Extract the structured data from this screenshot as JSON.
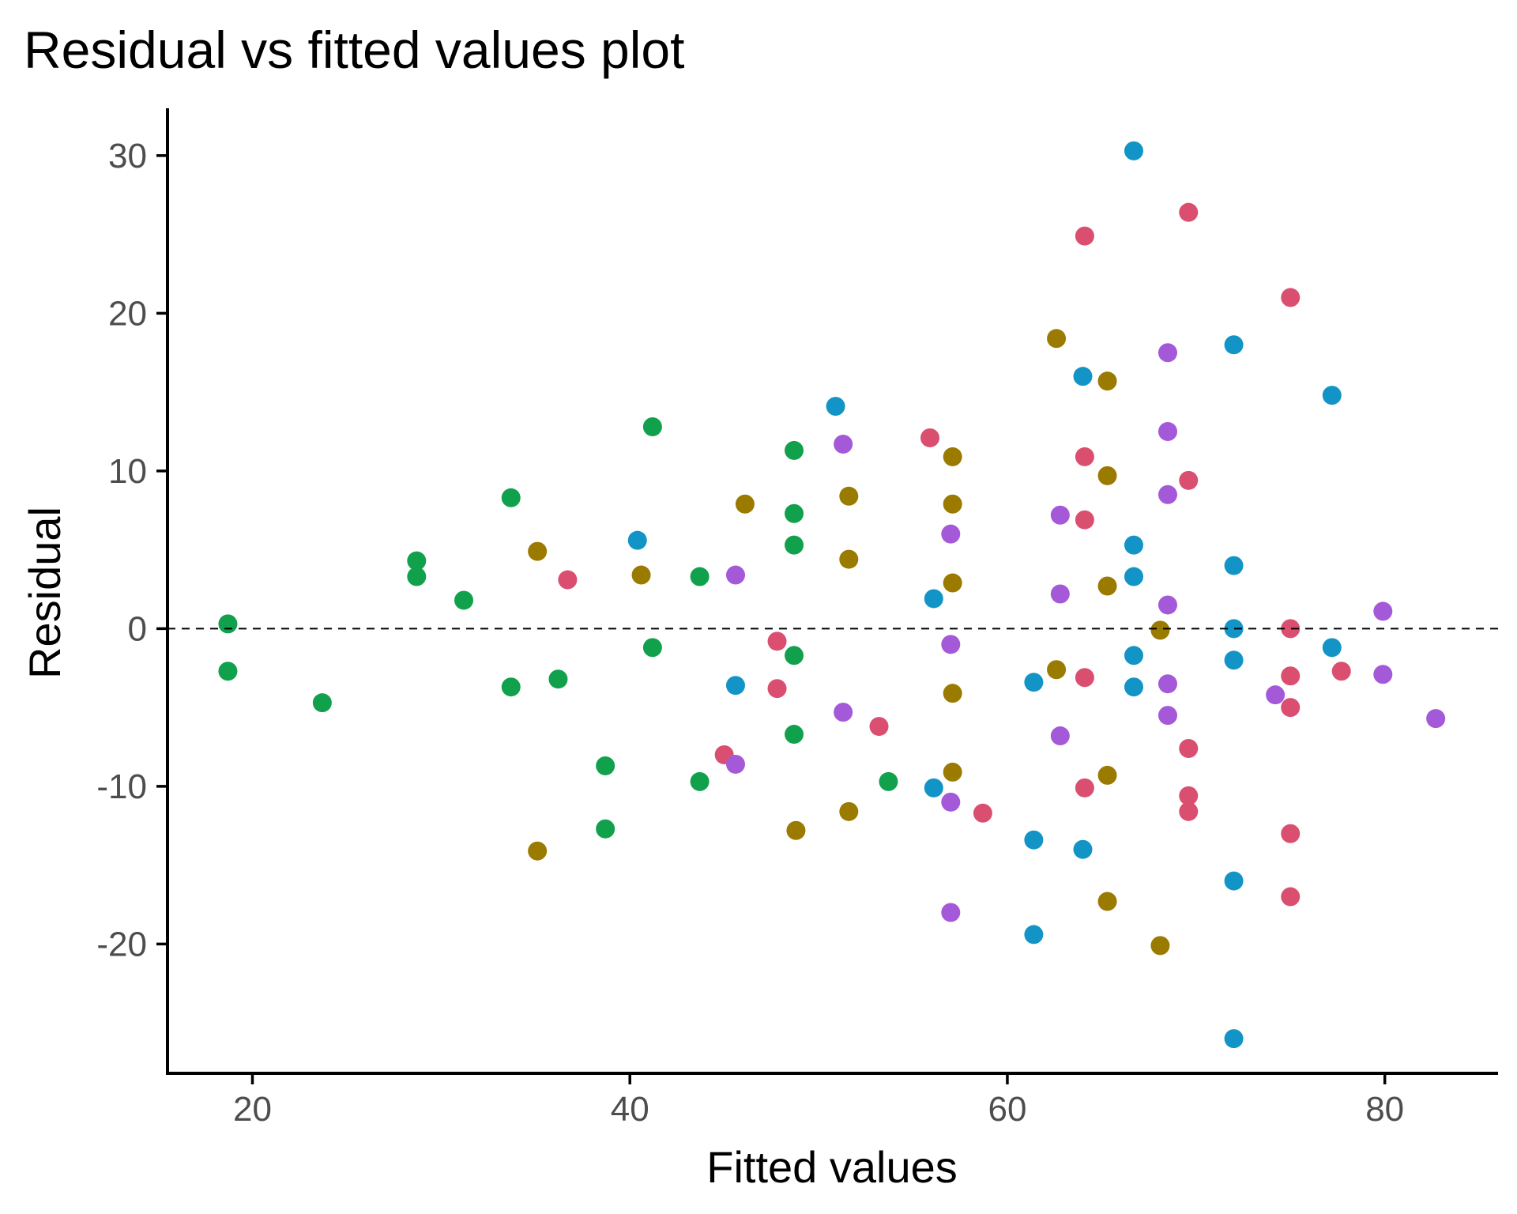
{
  "chart_data": {
    "type": "scatter",
    "title": "Residual vs fitted values plot",
    "xlabel": "Fitted values",
    "ylabel": "Residual",
    "xlim": [
      15.5,
      86
    ],
    "ylim": [
      -28.2,
      33
    ],
    "xticks": [
      20,
      40,
      60,
      80
    ],
    "yticks": [
      -20,
      -10,
      0,
      10,
      20,
      30
    ],
    "xtick_labels": [
      "20",
      "40",
      "60",
      "80"
    ],
    "ytick_labels": [
      "-20",
      "-10",
      "0",
      "10",
      "20",
      "30"
    ],
    "grid": false,
    "legend": "none",
    "reference_line": {
      "y": 0,
      "style": "dashed"
    },
    "series": [
      {
        "color": "#11a14d",
        "points": [
          [
            18.7,
            0.3
          ],
          [
            18.7,
            -2.7
          ],
          [
            23.7,
            -4.7
          ],
          [
            28.7,
            4.3
          ],
          [
            28.7,
            3.3
          ],
          [
            31.2,
            1.8
          ],
          [
            33.7,
            8.3
          ],
          [
            33.7,
            -3.7
          ],
          [
            36.2,
            -3.2
          ],
          [
            38.7,
            -8.7
          ],
          [
            38.7,
            -12.7
          ],
          [
            41.2,
            12.8
          ],
          [
            41.2,
            -1.2
          ],
          [
            43.7,
            3.3
          ],
          [
            43.7,
            -9.7
          ],
          [
            48.7,
            11.3
          ],
          [
            48.7,
            7.3
          ],
          [
            48.7,
            5.3
          ],
          [
            48.7,
            -1.7
          ],
          [
            48.7,
            -6.7
          ],
          [
            53.7,
            -9.7
          ]
        ]
      },
      {
        "color": "#9b7a00",
        "points": [
          [
            35.1,
            4.9
          ],
          [
            35.1,
            -14.1
          ],
          [
            40.6,
            3.4
          ],
          [
            46.1,
            7.9
          ],
          [
            48.8,
            -12.8
          ],
          [
            51.6,
            8.4
          ],
          [
            51.6,
            4.4
          ],
          [
            51.6,
            -11.6
          ],
          [
            57.1,
            10.9
          ],
          [
            57.1,
            7.9
          ],
          [
            57.1,
            2.9
          ],
          [
            57.1,
            -4.1
          ],
          [
            57.1,
            -9.1
          ],
          [
            62.6,
            18.4
          ],
          [
            62.6,
            -2.6
          ],
          [
            65.3,
            15.7
          ],
          [
            65.3,
            9.7
          ],
          [
            65.3,
            2.7
          ],
          [
            65.3,
            -9.3
          ],
          [
            65.3,
            -17.3
          ],
          [
            68.1,
            -0.1
          ],
          [
            68.1,
            -20.1
          ]
        ]
      },
      {
        "color": "#da4f6f",
        "points": [
          [
            36.7,
            3.1
          ],
          [
            45.0,
            -8.0
          ],
          [
            47.8,
            -0.8
          ],
          [
            47.8,
            -3.8
          ],
          [
            53.2,
            -6.2
          ],
          [
            55.9,
            12.1
          ],
          [
            58.7,
            -11.7
          ],
          [
            64.1,
            24.9
          ],
          [
            64.1,
            10.9
          ],
          [
            64.1,
            6.9
          ],
          [
            64.1,
            -3.1
          ],
          [
            64.1,
            -10.1
          ],
          [
            69.6,
            26.4
          ],
          [
            69.6,
            9.4
          ],
          [
            69.6,
            -7.6
          ],
          [
            69.6,
            -10.6
          ],
          [
            69.6,
            -11.6
          ],
          [
            75.0,
            21.0
          ],
          [
            75.0,
            0.0
          ],
          [
            75.0,
            -3.0
          ],
          [
            75.0,
            -5.0
          ],
          [
            75.0,
            -13.0
          ],
          [
            75.0,
            -17.0
          ],
          [
            77.7,
            -2.7
          ]
        ]
      },
      {
        "color": "#1295c6",
        "points": [
          [
            40.4,
            5.6
          ],
          [
            45.6,
            -3.6
          ],
          [
            50.9,
            14.1
          ],
          [
            56.1,
            1.9
          ],
          [
            56.1,
            -10.1
          ],
          [
            61.4,
            -3.4
          ],
          [
            61.4,
            -13.4
          ],
          [
            61.4,
            -19.4
          ],
          [
            64.0,
            16.0
          ],
          [
            64.0,
            -14.0
          ],
          [
            66.7,
            30.3
          ],
          [
            66.7,
            5.3
          ],
          [
            66.7,
            3.3
          ],
          [
            66.7,
            -1.7
          ],
          [
            66.7,
            -3.7
          ],
          [
            72.0,
            18.0
          ],
          [
            72.0,
            4.0
          ],
          [
            72.0,
            0.0
          ],
          [
            72.0,
            -2.0
          ],
          [
            72.0,
            -16.0
          ],
          [
            72.0,
            -26.0
          ],
          [
            77.2,
            14.8
          ],
          [
            77.2,
            -1.2
          ]
        ]
      },
      {
        "color": "#a459d9",
        "points": [
          [
            45.6,
            3.4
          ],
          [
            45.6,
            -8.6
          ],
          [
            51.3,
            11.7
          ],
          [
            51.3,
            -5.3
          ],
          [
            57.0,
            6.0
          ],
          [
            57.0,
            -1.0
          ],
          [
            57.0,
            -11.0
          ],
          [
            57.0,
            -18.0
          ],
          [
            62.8,
            7.2
          ],
          [
            62.8,
            2.2
          ],
          [
            62.8,
            -6.8
          ],
          [
            68.5,
            17.5
          ],
          [
            68.5,
            12.5
          ],
          [
            68.5,
            8.5
          ],
          [
            68.5,
            1.5
          ],
          [
            68.5,
            -3.5
          ],
          [
            68.5,
            -5.5
          ],
          [
            74.2,
            -4.2
          ],
          [
            79.9,
            1.1
          ],
          [
            79.9,
            -2.9
          ],
          [
            82.7,
            -5.7
          ]
        ]
      }
    ]
  }
}
